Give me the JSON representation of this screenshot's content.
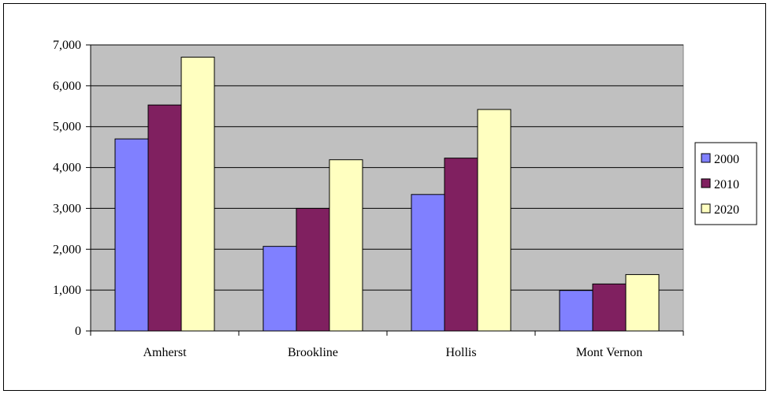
{
  "chart_data": {
    "type": "bar",
    "title": "",
    "xlabel": "",
    "ylabel": "",
    "categories": [
      "Amherst",
      "Brookline",
      "Hollis",
      "Mont Vernon"
    ],
    "series": [
      {
        "name": "2000",
        "values": [
          4700,
          2070,
          3340,
          990
        ],
        "color": "#8080ff"
      },
      {
        "name": "2010",
        "values": [
          5530,
          3000,
          4230,
          1150
        ],
        "color": "#802060"
      },
      {
        "name": "2020",
        "values": [
          6700,
          4190,
          5420,
          1380
        ],
        "color": "#ffffc0"
      }
    ],
    "ylim": [
      0,
      7000
    ],
    "yticks": [
      "0",
      "1,000",
      "2,000",
      "3,000",
      "4,000",
      "5,000",
      "6,000",
      "7,000"
    ],
    "grid": true,
    "legend": "right",
    "plot_background": "#c0c0c0"
  }
}
